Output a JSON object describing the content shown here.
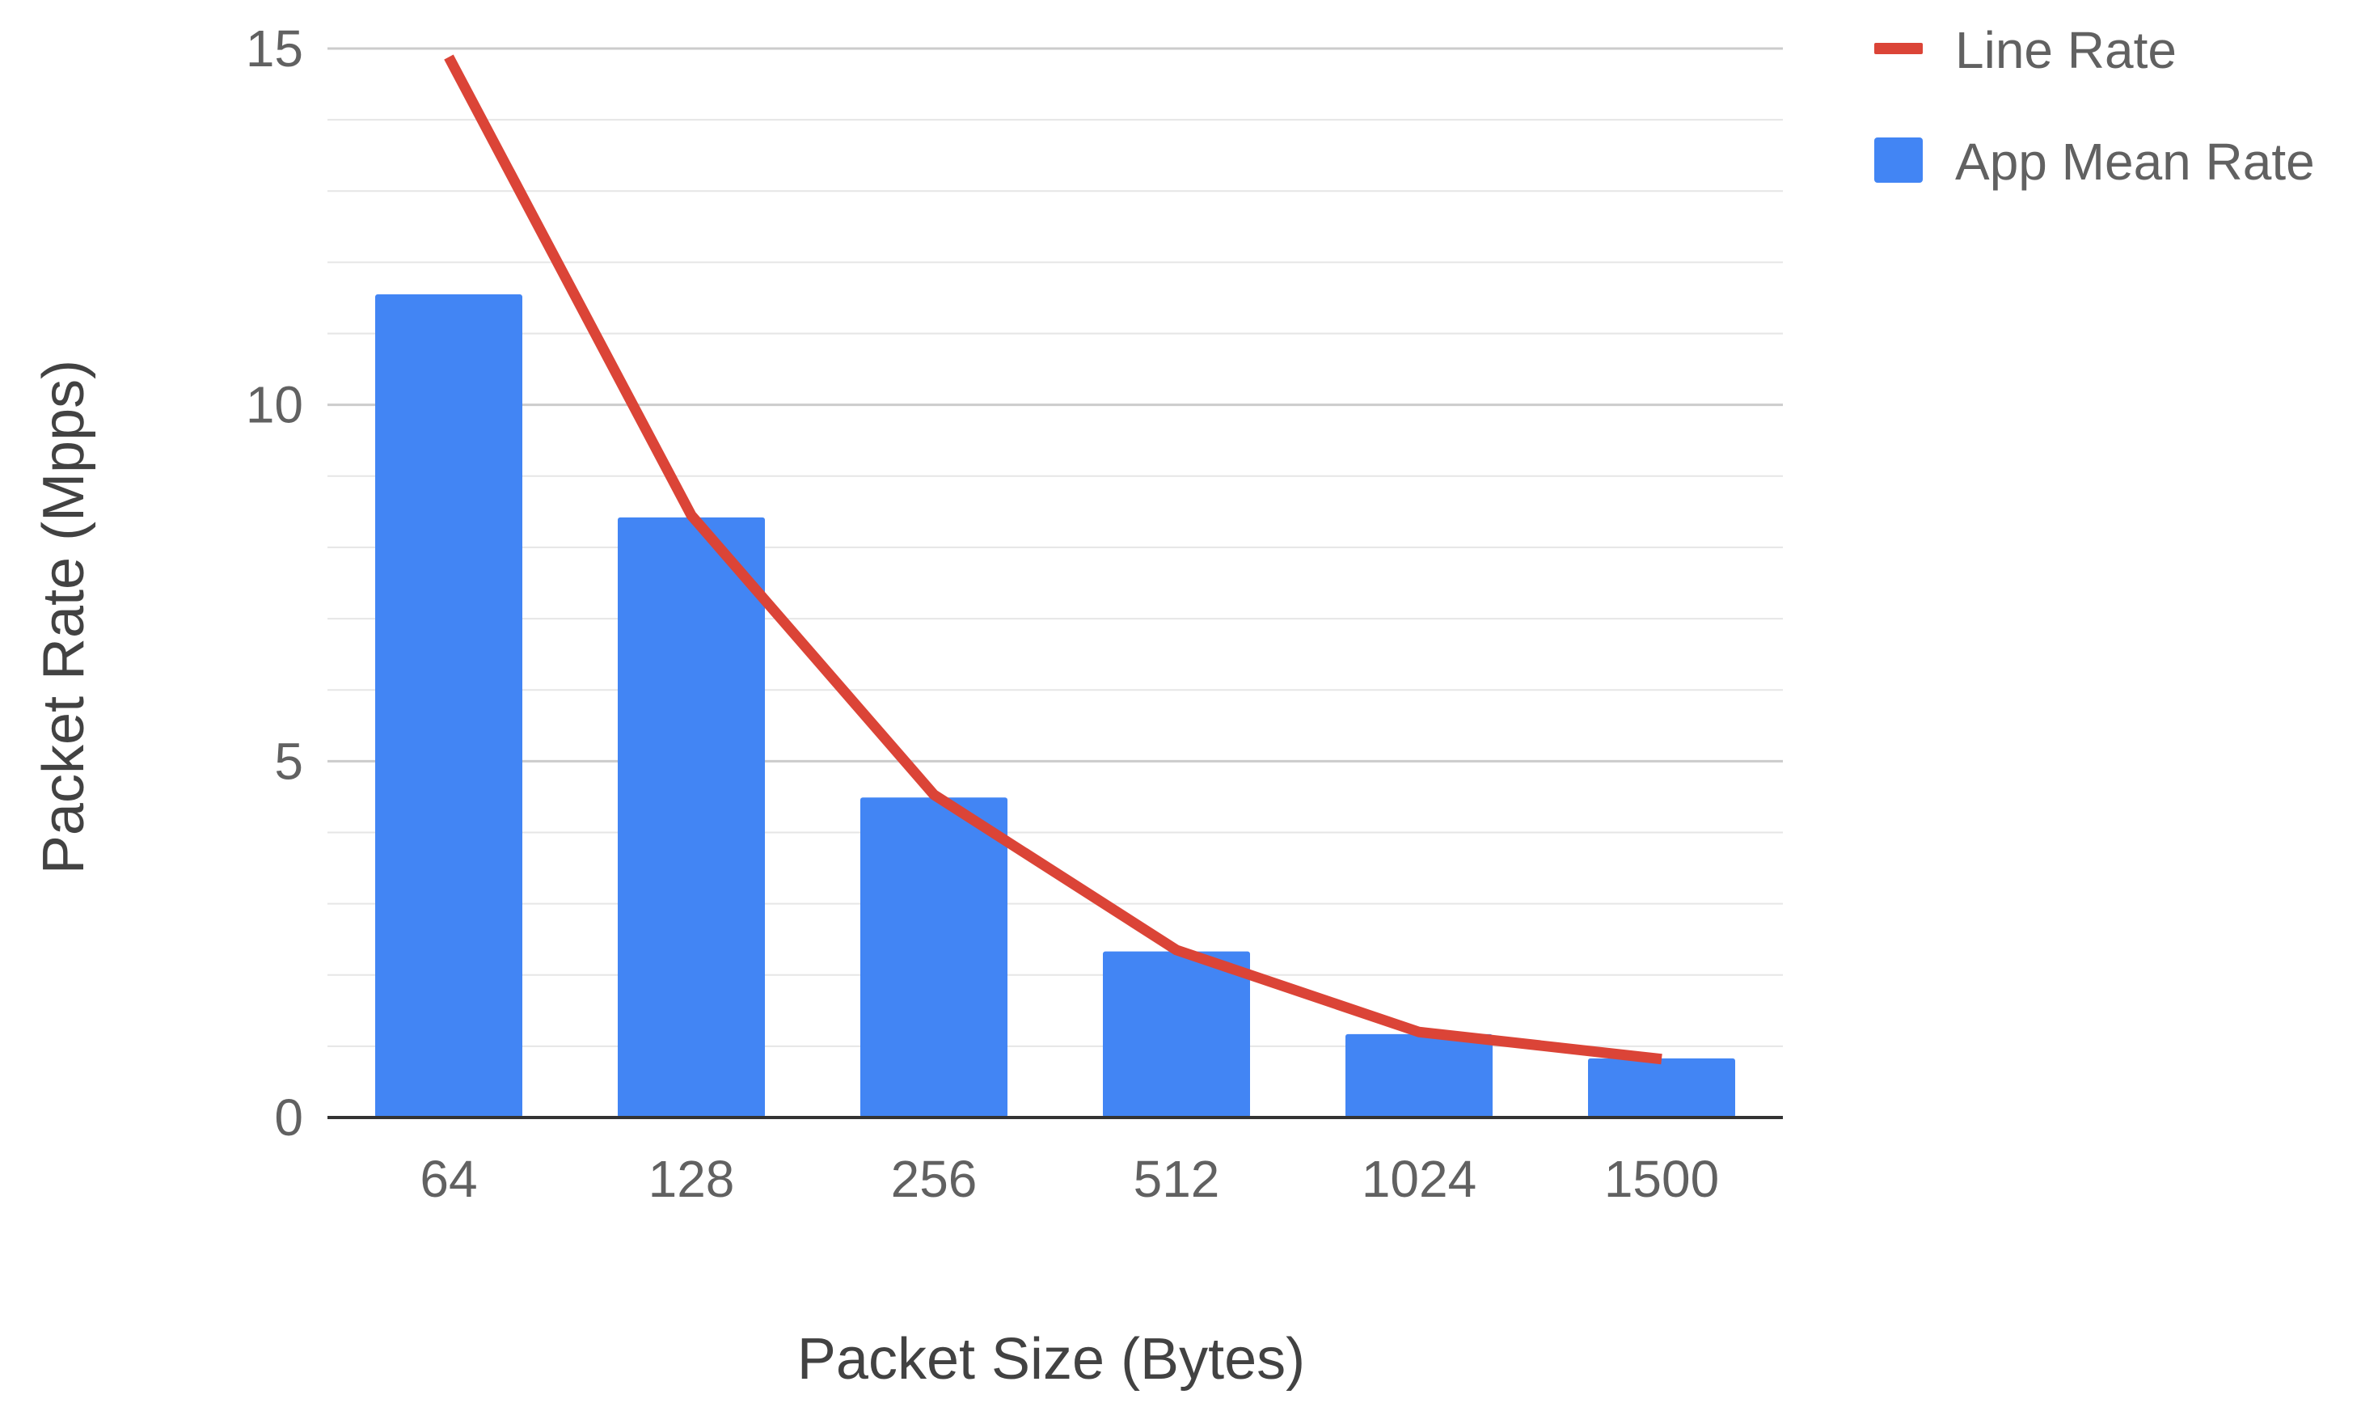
{
  "chart_data": {
    "type": "bar",
    "title": "",
    "xlabel": "Packet Size (Bytes)",
    "ylabel": "Packet Rate (Mpps)",
    "categories": [
      "64",
      "128",
      "256",
      "512",
      "1024",
      "1500"
    ],
    "ylim": [
      0,
      15
    ],
    "yticks": [
      0,
      5,
      10,
      15
    ],
    "grid": true,
    "legend_position": "top-right",
    "series": [
      {
        "name": "App Mean Rate",
        "type": "bar",
        "color": "#4285f4",
        "values": [
          11.55,
          8.42,
          4.49,
          2.33,
          1.17,
          0.83
        ]
      },
      {
        "name": "Line Rate",
        "type": "line",
        "color": "#db4437",
        "values": [
          14.88,
          8.45,
          4.53,
          2.35,
          1.2,
          0.82
        ]
      }
    ]
  }
}
